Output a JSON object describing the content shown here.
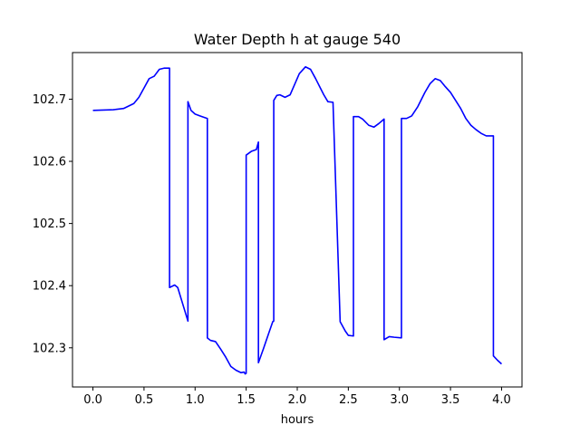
{
  "chart_data": {
    "type": "line",
    "title": "Water Depth h at gauge 540",
    "xlabel": "hours",
    "ylabel": "",
    "xlim": [
      -0.2,
      4.2
    ],
    "ylim": [
      102.237,
      102.775
    ],
    "grid": false,
    "legend": "none",
    "x_ticks": [
      0.0,
      0.5,
      1.0,
      1.5,
      2.0,
      2.5,
      3.0,
      3.5,
      4.0
    ],
    "x_tick_labels": [
      "0.0",
      "0.5",
      "1.0",
      "1.5",
      "2.0",
      "2.5",
      "3.0",
      "3.5",
      "4.0"
    ],
    "y_ticks": [
      102.3,
      102.4,
      102.5,
      102.6,
      102.7
    ],
    "y_tick_labels": [
      "102.3",
      "102.4",
      "102.5",
      "102.6",
      "102.7"
    ],
    "series": [
      {
        "color": "#0000ff",
        "x": [
          0.0,
          0.2,
          0.3,
          0.4,
          0.45,
          0.5,
          0.55,
          0.6,
          0.65,
          0.7,
          0.75,
          0.75,
          0.8,
          0.83,
          0.93,
          0.93,
          0.96,
          1.0,
          1.05,
          1.12,
          1.12,
          1.15,
          1.2,
          1.25,
          1.3,
          1.35,
          1.4,
          1.45,
          1.48,
          1.49,
          1.5,
          1.5,
          1.55,
          1.6,
          1.62,
          1.62,
          1.67,
          1.72,
          1.76,
          1.77,
          1.77,
          1.8,
          1.83,
          1.88,
          1.93,
          1.97,
          2.02,
          2.08,
          2.13,
          2.18,
          2.22,
          2.26,
          2.3,
          2.35,
          2.42,
          2.42,
          2.47,
          2.5,
          2.55,
          2.55,
          2.6,
          2.64,
          2.7,
          2.75,
          2.8,
          2.85,
          2.85,
          2.9,
          2.95,
          3.02,
          3.02,
          3.07,
          3.12,
          3.18,
          3.25,
          3.3,
          3.35,
          3.4,
          3.45,
          3.5,
          3.55,
          3.6,
          3.65,
          3.7,
          3.75,
          3.8,
          3.85,
          3.92,
          3.92,
          3.96,
          4.0
        ],
        "y": [
          102.682,
          102.683,
          102.685,
          102.693,
          102.703,
          102.718,
          102.733,
          102.737,
          102.748,
          102.75,
          102.75,
          102.397,
          102.401,
          102.397,
          102.343,
          102.696,
          102.682,
          102.676,
          102.673,
          102.669,
          102.316,
          102.312,
          102.31,
          102.298,
          102.285,
          102.27,
          102.264,
          102.26,
          102.261,
          102.258,
          102.259,
          102.61,
          102.616,
          102.619,
          102.631,
          102.276,
          102.299,
          102.323,
          102.342,
          102.343,
          102.698,
          102.706,
          102.707,
          102.703,
          102.707,
          102.722,
          102.741,
          102.752,
          102.748,
          102.733,
          102.72,
          102.707,
          102.696,
          102.695,
          102.342,
          102.342,
          102.327,
          102.32,
          102.319,
          102.672,
          102.672,
          102.668,
          102.658,
          102.655,
          102.661,
          102.668,
          102.313,
          102.318,
          102.317,
          102.316,
          102.669,
          102.669,
          102.673,
          102.688,
          102.711,
          102.725,
          102.733,
          102.73,
          102.72,
          102.711,
          102.698,
          102.685,
          102.669,
          102.658,
          102.651,
          102.645,
          102.641,
          102.641,
          102.287,
          102.28,
          102.274
        ]
      }
    ]
  }
}
